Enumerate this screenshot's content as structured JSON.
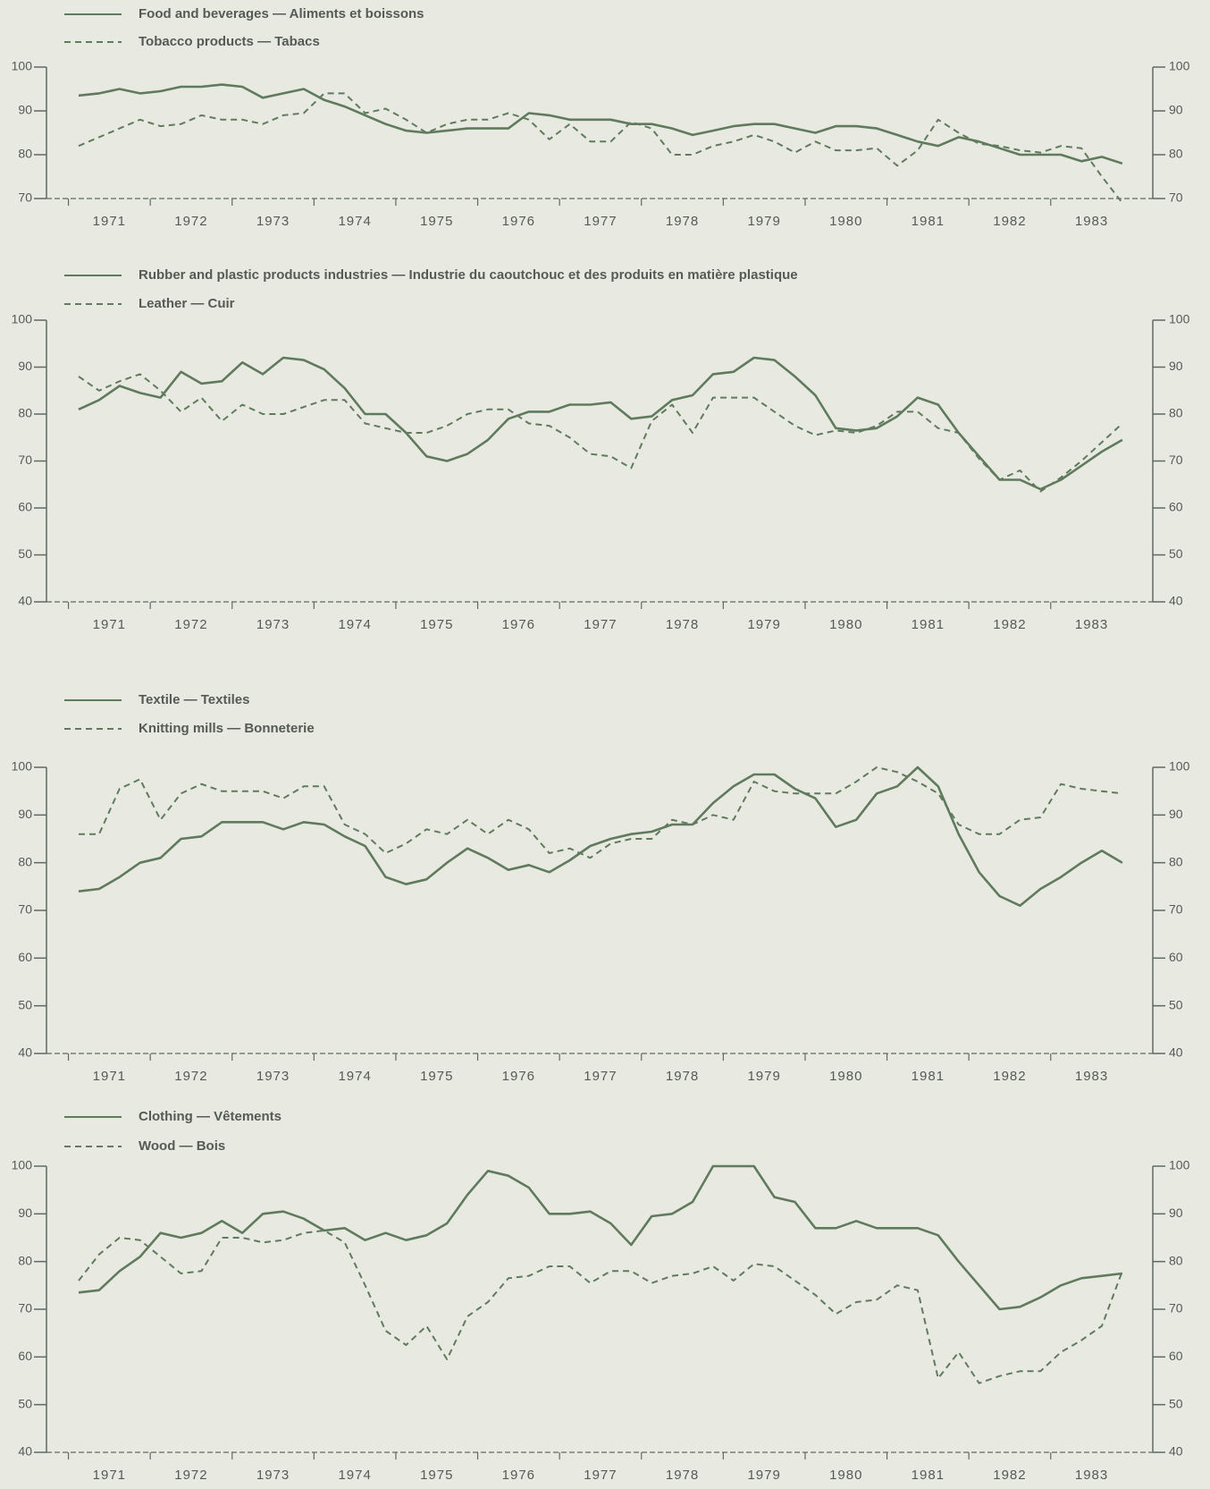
{
  "chart_data": [
    {
      "type": "line",
      "categories": [
        null,
        "1971",
        null,
        null,
        null,
        "1972",
        null,
        null,
        null,
        "1973",
        null,
        null,
        null,
        "1974",
        null,
        null,
        null,
        "1975",
        null,
        null,
        null,
        "1976",
        null,
        null,
        null,
        "1977",
        null,
        null,
        null,
        "1978",
        null,
        null,
        null,
        "1979",
        null,
        null,
        null,
        "1980",
        null,
        null,
        null,
        "1981",
        null,
        null,
        null,
        "1982",
        null,
        null,
        null,
        "1983",
        null,
        null
      ],
      "ylim": [
        70,
        100
      ],
      "yticks": [
        70,
        80,
        90,
        100
      ],
      "series": [
        {
          "name": "Food and beverages — Aliments et boissons",
          "color": "#5f7a5c",
          "line_style": "solid",
          "values": [
            93.5,
            94,
            95,
            94,
            94.5,
            95.5,
            95.5,
            96,
            95.5,
            93,
            94,
            95,
            92.5,
            91,
            89,
            87,
            85.5,
            85,
            85.5,
            86,
            86,
            86,
            89.5,
            89,
            88,
            88,
            88,
            87,
            87,
            86,
            84.5,
            85.5,
            86.5,
            87,
            87,
            86,
            85,
            86.5,
            86.5,
            86,
            84.5,
            83,
            82,
            84,
            83,
            81.5,
            80,
            80,
            80,
            78.5,
            79.5,
            78
          ]
        },
        {
          "name": "Tobacco products — Tabacs",
          "color": "#5f7a5c",
          "line_style": "dashed",
          "values": [
            82,
            84,
            86,
            88,
            86.5,
            87,
            89,
            88,
            88,
            87,
            89,
            89.5,
            94,
            94,
            89.5,
            90.5,
            88,
            85,
            87,
            88,
            88,
            89.5,
            88,
            83.5,
            87,
            83,
            83,
            87.5,
            86,
            80,
            80,
            82,
            83,
            84.5,
            83,
            80.5,
            83,
            81,
            81,
            81.5,
            77.5,
            81,
            88,
            85,
            82.5,
            82,
            81,
            80.5,
            82,
            81.5,
            75,
            69
          ]
        }
      ]
    },
    {
      "type": "line",
      "categories": [
        null,
        "1971",
        null,
        null,
        null,
        "1972",
        null,
        null,
        null,
        "1973",
        null,
        null,
        null,
        "1974",
        null,
        null,
        null,
        "1975",
        null,
        null,
        null,
        "1976",
        null,
        null,
        null,
        "1977",
        null,
        null,
        null,
        "1978",
        null,
        null,
        null,
        "1979",
        null,
        null,
        null,
        "1980",
        null,
        null,
        null,
        "1981",
        null,
        null,
        null,
        "1982",
        null,
        null,
        null,
        "1983",
        null,
        null
      ],
      "ylim": [
        40,
        100
      ],
      "yticks": [
        40,
        50,
        60,
        70,
        80,
        90,
        100
      ],
      "series": [
        {
          "name": "Rubber and plastic products industries — Industrie du caoutchouc et des produits en matière plastique",
          "color": "#5f7a5c",
          "line_style": "solid",
          "values": [
            81,
            83,
            86,
            84.5,
            83.5,
            89,
            86.5,
            87,
            91,
            88.5,
            92,
            91.5,
            89.5,
            85.5,
            80,
            80,
            76,
            71,
            70,
            71.5,
            74.5,
            79,
            80.5,
            80.5,
            82,
            82,
            82.5,
            79,
            79.5,
            83,
            84,
            88.5,
            89,
            92,
            91.5,
            88,
            84,
            77,
            76.5,
            77,
            79.5,
            83.5,
            82,
            76,
            71,
            66,
            66,
            64,
            66,
            69,
            72,
            74.5
          ]
        },
        {
          "name": "Leather — Cuir",
          "color": "#5f7a5c",
          "line_style": "dashed",
          "values": [
            88,
            85,
            87,
            88.5,
            85,
            80.5,
            83.5,
            78.5,
            82,
            80,
            80,
            81.5,
            83,
            83,
            78,
            77,
            76,
            76,
            77.5,
            80,
            81,
            81,
            78,
            77.5,
            75,
            71.5,
            71,
            68.5,
            78.5,
            82,
            76,
            83.5,
            83.5,
            83.5,
            80.5,
            77.5,
            75.5,
            76.5,
            76,
            77.5,
            80.5,
            80.5,
            77,
            76,
            70.5,
            66,
            68,
            63.5,
            66.5,
            70,
            74,
            78
          ]
        }
      ]
    },
    {
      "type": "line",
      "categories": [
        null,
        "1971",
        null,
        null,
        null,
        "1972",
        null,
        null,
        null,
        "1973",
        null,
        null,
        null,
        "1974",
        null,
        null,
        null,
        "1975",
        null,
        null,
        null,
        "1976",
        null,
        null,
        null,
        "1977",
        null,
        null,
        null,
        "1978",
        null,
        null,
        null,
        "1979",
        null,
        null,
        null,
        "1980",
        null,
        null,
        null,
        "1981",
        null,
        null,
        null,
        "1982",
        null,
        null,
        null,
        "1983",
        null,
        null
      ],
      "ylim": [
        40,
        100
      ],
      "yticks": [
        40,
        50,
        60,
        70,
        80,
        90,
        100
      ],
      "series": [
        {
          "name": "Textile — Textiles",
          "color": "#5f7a5c",
          "line_style": "solid",
          "values": [
            74,
            74.5,
            77,
            80,
            81,
            85,
            85.5,
            88.5,
            88.5,
            88.5,
            87,
            88.5,
            88,
            85.5,
            83.5,
            77,
            75.5,
            76.5,
            80,
            83,
            81,
            78.5,
            79.5,
            78,
            80.5,
            83.5,
            85,
            86,
            86.5,
            88,
            88,
            92.5,
            96,
            98.5,
            98.5,
            95.5,
            93.5,
            87.5,
            89,
            94.5,
            96,
            100,
            96,
            86,
            78,
            73,
            71,
            74.5,
            77,
            80,
            82.5,
            80
          ]
        },
        {
          "name": "Knitting mills — Bonneterie",
          "color": "#5f7a5c",
          "line_style": "dashed",
          "values": [
            86,
            86,
            95.5,
            97.5,
            89,
            94.5,
            96.5,
            95,
            95,
            95,
            93.5,
            96,
            96,
            88,
            86,
            82,
            84,
            87,
            86,
            89,
            86,
            89,
            87,
            82,
            83,
            81,
            84,
            85,
            85,
            89,
            88,
            90,
            89,
            97,
            95,
            94.5,
            94.5,
            94.5,
            97,
            100,
            99,
            97,
            94.5,
            88,
            86,
            86,
            89,
            89.5,
            96.5,
            95.5,
            95,
            94.5
          ]
        }
      ]
    },
    {
      "type": "line",
      "categories": [
        null,
        "1971",
        null,
        null,
        null,
        "1972",
        null,
        null,
        null,
        "1973",
        null,
        null,
        null,
        "1974",
        null,
        null,
        null,
        "1975",
        null,
        null,
        null,
        "1976",
        null,
        null,
        null,
        "1977",
        null,
        null,
        null,
        "1978",
        null,
        null,
        null,
        "1979",
        null,
        null,
        null,
        "1980",
        null,
        null,
        null,
        "1981",
        null,
        null,
        null,
        "1982",
        null,
        null,
        null,
        "1983",
        null,
        null
      ],
      "ylim": [
        40,
        100
      ],
      "yticks": [
        40,
        50,
        60,
        70,
        80,
        90,
        100
      ],
      "series": [
        {
          "name": "Clothing — Vêtements",
          "color": "#5f7a5c",
          "line_style": "solid",
          "values": [
            73.5,
            74,
            78,
            81,
            86,
            85,
            86,
            88.5,
            86,
            90,
            90.5,
            89,
            86.5,
            87,
            84.5,
            86,
            84.5,
            85.5,
            88,
            94,
            99,
            98,
            95.5,
            90,
            90,
            90.5,
            88,
            83.5,
            89.5,
            90,
            92.5,
            100,
            100,
            100,
            93.5,
            92.5,
            87,
            87,
            88.5,
            87,
            87,
            87,
            85.5,
            80,
            75,
            70,
            70.5,
            72.5,
            75,
            76.5,
            77,
            77.5
          ]
        },
        {
          "name": "Wood — Bois",
          "color": "#5f7a5c",
          "line_style": "dashed",
          "values": [
            76,
            81.5,
            85,
            84.5,
            81,
            77.5,
            78,
            85,
            85,
            84,
            84.5,
            86,
            86.5,
            84,
            75,
            65.5,
            62.5,
            66.5,
            59.5,
            68.5,
            71.5,
            76.5,
            77,
            79,
            79,
            75.5,
            78,
            78,
            75.5,
            77,
            77.5,
            79,
            76,
            79.5,
            79,
            76,
            73,
            69,
            71.5,
            72,
            75,
            74,
            55.5,
            61,
            54.5,
            56,
            57,
            57,
            61,
            63.5,
            66.5,
            78
          ]
        }
      ]
    }
  ]
}
